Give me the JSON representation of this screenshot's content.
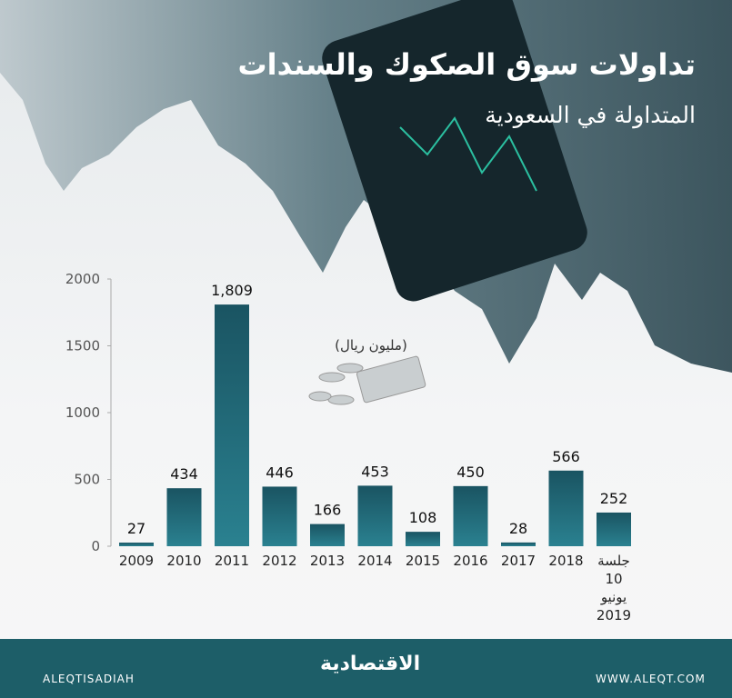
{
  "chart_data": {
    "type": "bar",
    "title": "تداولات سوق الصكوك والسندات",
    "subtitle": "المتداولة في السعودية",
    "unit_label": "(مليون ريال)",
    "categories": [
      "2009",
      "2010",
      "2011",
      "2012",
      "2013",
      "2014",
      "2015",
      "2016",
      "2017",
      "2018",
      "جلسة 10 يونيو 2019"
    ],
    "values": [
      27,
      434,
      1809,
      446,
      166,
      453,
      108,
      450,
      28,
      566,
      252
    ],
    "value_labels": [
      "27",
      "434",
      "1,809",
      "446",
      "166",
      "453",
      "108",
      "450",
      "28",
      "566",
      "252"
    ],
    "color": "#1f6170",
    "ylim": [
      0,
      2000
    ],
    "yticks": [
      0,
      500,
      1000,
      1500,
      2000
    ],
    "grid": false
  },
  "footer": {
    "social": "ALEQTISADIAH",
    "brand": "الاقتصادية",
    "website": "WWW.ALEQT.COM"
  }
}
